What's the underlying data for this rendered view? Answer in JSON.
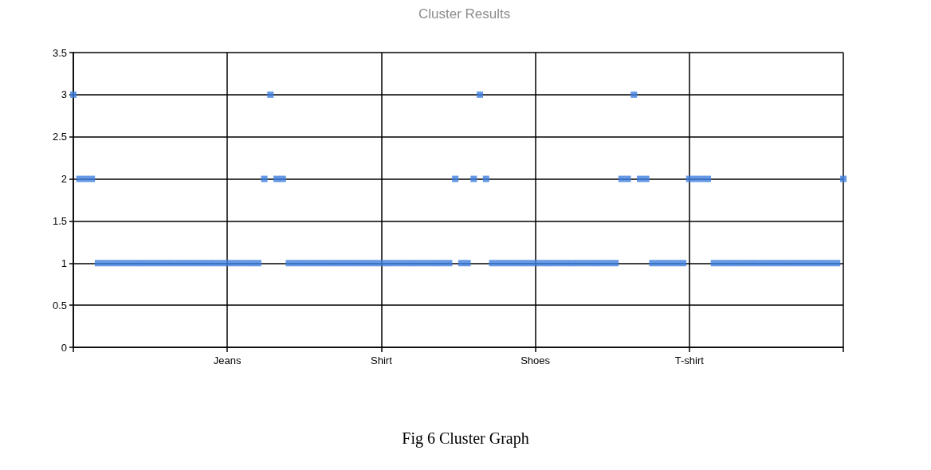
{
  "chart_data": {
    "type": "scatter",
    "title": "Cluster Results",
    "annotations": [
      "Fig 6 Cluster Graph"
    ],
    "categories": [
      null,
      null,
      null,
      null,
      null,
      null,
      null,
      null,
      null,
      null,
      null,
      null,
      null,
      null,
      null,
      null,
      null,
      null,
      null,
      null,
      null,
      null,
      null,
      null,
      null,
      "Jeans",
      null,
      null,
      null,
      null,
      null,
      null,
      null,
      null,
      null,
      null,
      null,
      null,
      null,
      null,
      null,
      null,
      null,
      null,
      null,
      null,
      null,
      null,
      null,
      null,
      "Shirt",
      null,
      null,
      null,
      null,
      null,
      null,
      null,
      null,
      null,
      null,
      null,
      null,
      null,
      null,
      null,
      null,
      null,
      null,
      null,
      null,
      null,
      null,
      null,
      null,
      "Shoes",
      null,
      null,
      null,
      null,
      null,
      null,
      null,
      null,
      null,
      null,
      null,
      null,
      null,
      null,
      null,
      null,
      null,
      null,
      null,
      null,
      null,
      null,
      null,
      null,
      "T-shirt",
      null,
      null,
      null,
      null,
      null,
      null,
      null,
      null,
      null,
      null,
      null,
      null,
      null,
      null,
      null,
      null,
      null,
      null,
      null,
      null,
      null,
      null,
      null,
      null,
      null
    ],
    "values": [
      3,
      2,
      2,
      2,
      1,
      1,
      1,
      1,
      1,
      1,
      1,
      1,
      1,
      1,
      1,
      1,
      1,
      1,
      1,
      1,
      1,
      1,
      1,
      1,
      1,
      1,
      1,
      1,
      1,
      1,
      1,
      2,
      3,
      2,
      2,
      1,
      1,
      1,
      1,
      1,
      1,
      1,
      1,
      1,
      1,
      1,
      1,
      1,
      1,
      1,
      1,
      1,
      1,
      1,
      1,
      1,
      1,
      1,
      1,
      1,
      1,
      1,
      2,
      1,
      1,
      2,
      3,
      2,
      1,
      1,
      1,
      1,
      1,
      1,
      1,
      1,
      1,
      1,
      1,
      1,
      1,
      1,
      1,
      1,
      1,
      1,
      1,
      1,
      1,
      2,
      2,
      3,
      2,
      2,
      1,
      1,
      1,
      1,
      1,
      1,
      2,
      2,
      2,
      2,
      1,
      1,
      1,
      1,
      1,
      1,
      1,
      1,
      1,
      1,
      1,
      1,
      1,
      1,
      1,
      1,
      1,
      1,
      1,
      1,
      1,
      2
    ],
    "color": "#3f7fe0",
    "marker": "square",
    "grid": true,
    "ylim": [
      0,
      3.5
    ],
    "yticks": [
      0,
      0.5,
      1,
      1.5,
      2,
      2.5,
      3,
      3.5
    ]
  }
}
